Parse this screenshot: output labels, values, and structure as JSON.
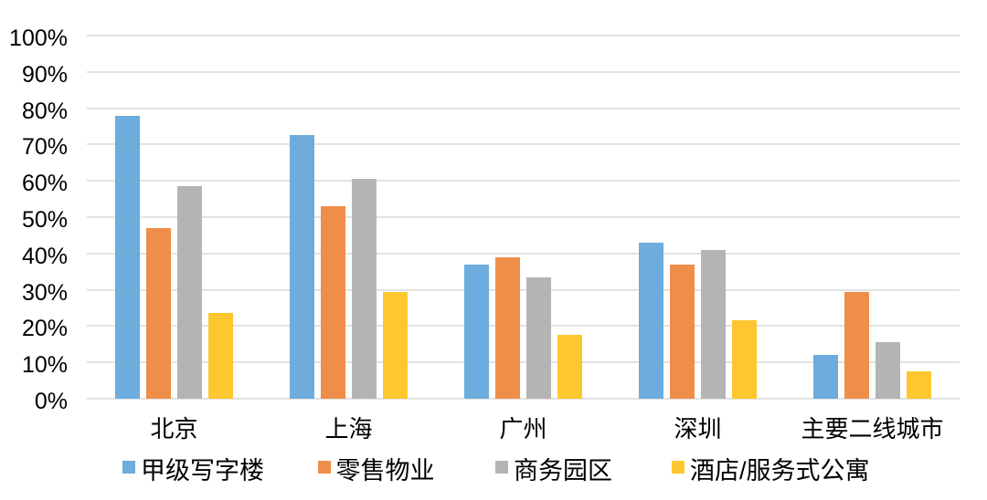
{
  "chart_data": {
    "type": "bar",
    "title": "",
    "categories": [
      "北京",
      "上海",
      "广州",
      "深圳",
      "主要二线城市"
    ],
    "series": [
      {
        "name": "甲级写字楼",
        "color": "#6DACDC",
        "values": [
          78,
          72.5,
          37,
          43,
          12
        ]
      },
      {
        "name": "零售物业",
        "color": "#EF8E49",
        "values": [
          47,
          53,
          39,
          37,
          29.5
        ]
      },
      {
        "name": "商务园区",
        "color": "#B4B4B5",
        "values": [
          58.5,
          60.5,
          33.5,
          41,
          15.5
        ]
      },
      {
        "name": "酒店/服务式公寓",
        "color": "#FEC72F",
        "values": [
          23.5,
          29.5,
          17.5,
          21.5,
          7.5
        ]
      }
    ],
    "xlabel": "",
    "ylabel": "",
    "y_axis": {
      "min": 0,
      "max": 100,
      "step": 10,
      "tick_labels": [
        "0%",
        "10%",
        "20%",
        "30%",
        "40%",
        "50%",
        "60%",
        "70%",
        "80%",
        "90%",
        "100%"
      ]
    },
    "grid": "horizontal",
    "legend_position": "bottom"
  },
  "colors": {
    "background": "#ffffff",
    "gridline": "#e2e2e2",
    "text": "#000000"
  }
}
